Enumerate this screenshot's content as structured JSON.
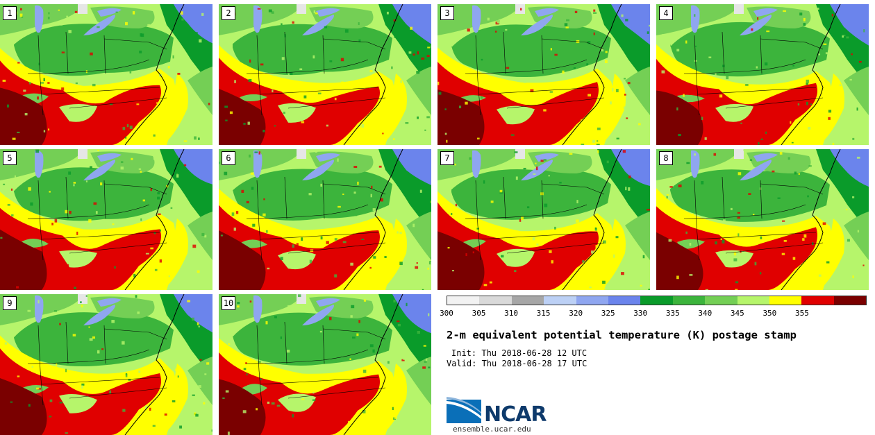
{
  "panels": [
    {
      "number": "1"
    },
    {
      "number": "2"
    },
    {
      "number": "3"
    },
    {
      "number": "4"
    },
    {
      "number": "5"
    },
    {
      "number": "6"
    },
    {
      "number": "7"
    },
    {
      "number": "8"
    },
    {
      "number": "9"
    },
    {
      "number": "10"
    }
  ],
  "colorbar": {
    "colors": [
      "#f2f2f2",
      "#d9d9d9",
      "#a6a6a6",
      "#bcd0f5",
      "#8fa6f0",
      "#6b84ec",
      "#0a9b2a",
      "#3cb43c",
      "#74cf55",
      "#b6f56b",
      "#ffff00",
      "#e00000",
      "#7a0000"
    ],
    "tick_labels": [
      "300",
      "305",
      "310",
      "315",
      "320",
      "325",
      "330",
      "335",
      "340",
      "345",
      "350",
      "355"
    ]
  },
  "title": "2-m equivalent potential temperature (K) postage stamp",
  "init": "Init: Thu 2018-06-28 12 UTC",
  "valid": "Valid: Thu 2018-06-28 17 UTC",
  "logo": {
    "text": "NCAR",
    "website": "ensemble.ucar.edu"
  },
  "map_colors": {
    "water": "#6b84ec",
    "water_light": "#8fa6f0",
    "dark_green": "#0a9b2a",
    "green": "#3cb43c",
    "light_green": "#74cf55",
    "pale_green": "#b6f56b",
    "yellow": "#ffff00",
    "red": "#e00000",
    "dark_red": "#7a0000"
  }
}
